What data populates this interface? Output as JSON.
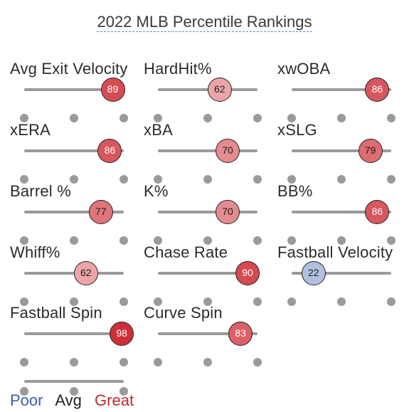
{
  "title": "2022 MLB Percentile Rankings",
  "colors": {
    "poor": "#3b5fa0",
    "avg": "#222222",
    "great": "#c0282e",
    "track": "#9a9a9a"
  },
  "metrics": [
    {
      "label": "Avg Exit Velocity",
      "value": 89
    },
    {
      "label": "HardHit%",
      "value": 62
    },
    {
      "label": "xwOBA",
      "value": 86
    },
    {
      "label": "xERA",
      "value": 86
    },
    {
      "label": "xBA",
      "value": 70
    },
    {
      "label": "xSLG",
      "value": 79
    },
    {
      "label": "Barrel %",
      "value": 77
    },
    {
      "label": "K%",
      "value": 70
    },
    {
      "label": "BB%",
      "value": 86
    },
    {
      "label": "Whiff%",
      "value": 62
    },
    {
      "label": "Chase Rate",
      "value": 90
    },
    {
      "label": "Fastball Velocity",
      "value": 22
    },
    {
      "label": "Fastball Spin",
      "value": 98
    },
    {
      "label": "Curve Spin",
      "value": 83
    }
  ],
  "legend": {
    "poor": "Poor",
    "avg": "Avg",
    "great": "Great"
  }
}
